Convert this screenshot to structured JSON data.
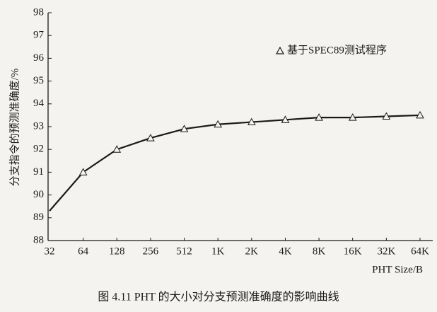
{
  "chart_data": {
    "type": "line",
    "caption": "图 4.11  PHT 的大小对分支预测准确度的影响曲线",
    "y_label": "分支指令的预测准确度/%",
    "x_label": "PHT Size/B",
    "categories": [
      "32",
      "64",
      "128",
      "256",
      "512",
      "1K",
      "2K",
      "4K",
      "8K",
      "16K",
      "32K",
      "64K"
    ],
    "series": [
      {
        "name": "基于SPEC89测试程序",
        "color": "#1a1a1a",
        "values": [
          89.3,
          91.0,
          92.0,
          92.5,
          92.9,
          93.1,
          93.2,
          93.3,
          93.4,
          93.4,
          93.45,
          93.5
        ]
      }
    ],
    "ylim": [
      88,
      98
    ],
    "yticks": [
      88,
      89,
      90,
      91,
      92,
      93,
      94,
      95,
      96,
      97,
      98
    ],
    "grid": false,
    "legend": "top-right",
    "marker": "triangle"
  }
}
